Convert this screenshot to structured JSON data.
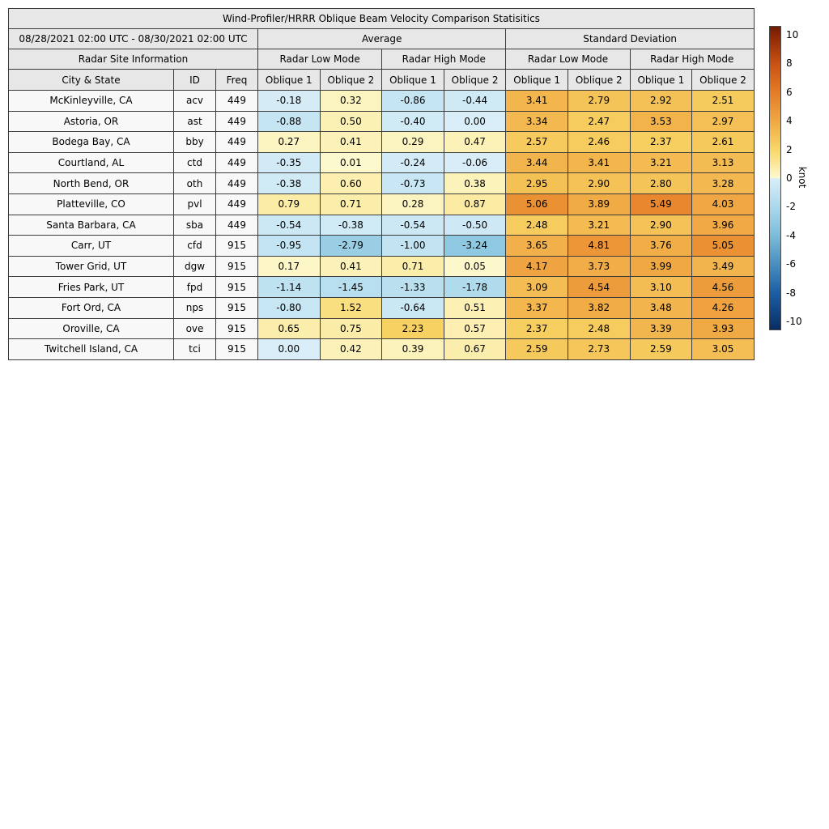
{
  "chart_data": {
    "type": "heatmap-table",
    "title": "Wind-Profiler/HRRR Oblique Beam Velocity Comparison Statisitics",
    "date_range": "08/28/2021 02:00 UTC - 08/30/2021 02:00 UTC",
    "group_headers": {
      "average": "Average",
      "std_dev": "Standard Deviation"
    },
    "site_info_header": "Radar Site Information",
    "mode_headers": {
      "low": "Radar Low Mode",
      "high": "Radar High Mode"
    },
    "col_headers": {
      "city": "City & State",
      "id": "ID",
      "freq": "Freq",
      "oblique1": "Oblique 1",
      "oblique2": "Oblique 2"
    },
    "value_column_order": [
      "avg_low_ob1",
      "avg_low_ob2",
      "avg_high_ob1",
      "avg_high_ob2",
      "sd_low_ob1",
      "sd_low_ob2",
      "sd_high_ob1",
      "sd_high_ob2"
    ],
    "rows": [
      {
        "city": "McKinleyville, CA",
        "id": "acv",
        "freq": "449",
        "values": [
          "-0.18",
          "0.32",
          "-0.86",
          "-0.44",
          "3.41",
          "2.79",
          "2.92",
          "2.51"
        ]
      },
      {
        "city": "Astoria, OR",
        "id": "ast",
        "freq": "449",
        "values": [
          "-0.88",
          "0.50",
          "-0.40",
          "0.00",
          "3.34",
          "2.47",
          "3.53",
          "2.97"
        ]
      },
      {
        "city": "Bodega Bay, CA",
        "id": "bby",
        "freq": "449",
        "values": [
          "0.27",
          "0.41",
          "0.29",
          "0.47",
          "2.57",
          "2.46",
          "2.37",
          "2.61"
        ]
      },
      {
        "city": "Courtland, AL",
        "id": "ctd",
        "freq": "449",
        "values": [
          "-0.35",
          "0.01",
          "-0.24",
          "-0.06",
          "3.44",
          "3.41",
          "3.21",
          "3.13"
        ]
      },
      {
        "city": "North Bend, OR",
        "id": "oth",
        "freq": "449",
        "values": [
          "-0.38",
          "0.60",
          "-0.73",
          "0.38",
          "2.95",
          "2.90",
          "2.80",
          "3.28"
        ]
      },
      {
        "city": "Platteville, CO",
        "id": "pvl",
        "freq": "449",
        "values": [
          "0.79",
          "0.71",
          "0.28",
          "0.87",
          "5.06",
          "3.89",
          "5.49",
          "4.03"
        ]
      },
      {
        "city": "Santa Barbara, CA",
        "id": "sba",
        "freq": "449",
        "values": [
          "-0.54",
          "-0.38",
          "-0.54",
          "-0.50",
          "2.48",
          "3.21",
          "2.90",
          "3.96"
        ]
      },
      {
        "city": "Carr, UT",
        "id": "cfd",
        "freq": "915",
        "values": [
          "-0.95",
          "-2.79",
          "-1.00",
          "-3.24",
          "3.65",
          "4.81",
          "3.76",
          "5.05"
        ]
      },
      {
        "city": "Tower Grid, UT",
        "id": "dgw",
        "freq": "915",
        "values": [
          "0.17",
          "0.41",
          "0.71",
          "0.05",
          "4.17",
          "3.73",
          "3.99",
          "3.49"
        ]
      },
      {
        "city": "Fries Park, UT",
        "id": "fpd",
        "freq": "915",
        "values": [
          "-1.14",
          "-1.45",
          "-1.33",
          "-1.78",
          "3.09",
          "4.54",
          "3.10",
          "4.56"
        ]
      },
      {
        "city": "Fort Ord, CA",
        "id": "nps",
        "freq": "915",
        "values": [
          "-0.80",
          "1.52",
          "-0.64",
          "0.51",
          "3.37",
          "3.82",
          "3.48",
          "4.26"
        ]
      },
      {
        "city": "Oroville, CA",
        "id": "ove",
        "freq": "915",
        "values": [
          "0.65",
          "0.75",
          "2.23",
          "0.57",
          "2.37",
          "2.48",
          "3.39",
          "3.93"
        ]
      },
      {
        "city": "Twitchell Island, CA",
        "id": "tci",
        "freq": "915",
        "values": [
          "0.00",
          "0.42",
          "0.39",
          "0.67",
          "2.59",
          "2.73",
          "2.59",
          "3.05"
        ]
      }
    ],
    "colorbar": {
      "label": "knot",
      "unit": "knot",
      "vmin": -10,
      "vmax": 10,
      "ticks": [
        "10",
        "8",
        "6",
        "4",
        "2",
        "0",
        "-2",
        "-4",
        "-6",
        "-8",
        "-10"
      ],
      "tick_values": [
        10,
        8,
        6,
        4,
        2,
        0,
        -2,
        -4,
        -6,
        -8,
        -10
      ],
      "positive_colors": [
        "#fdf9cf",
        "#f8d766",
        "#f0a843",
        "#e57c26",
        "#cb5212",
        "#8c2606"
      ],
      "negative_colors": [
        "#d9eef8",
        "#abd9ec",
        "#7dbdda",
        "#4a90c1",
        "#1d5fa6",
        "#0d3a75"
      ],
      "edge_color_top": "#701c03",
      "edge_color_bottom": "#082c60"
    },
    "style_colors": {
      "header_bg": "#e7e7e7",
      "label_cell_bg": "#f8f8f8",
      "border": "#3b3b3b"
    }
  }
}
